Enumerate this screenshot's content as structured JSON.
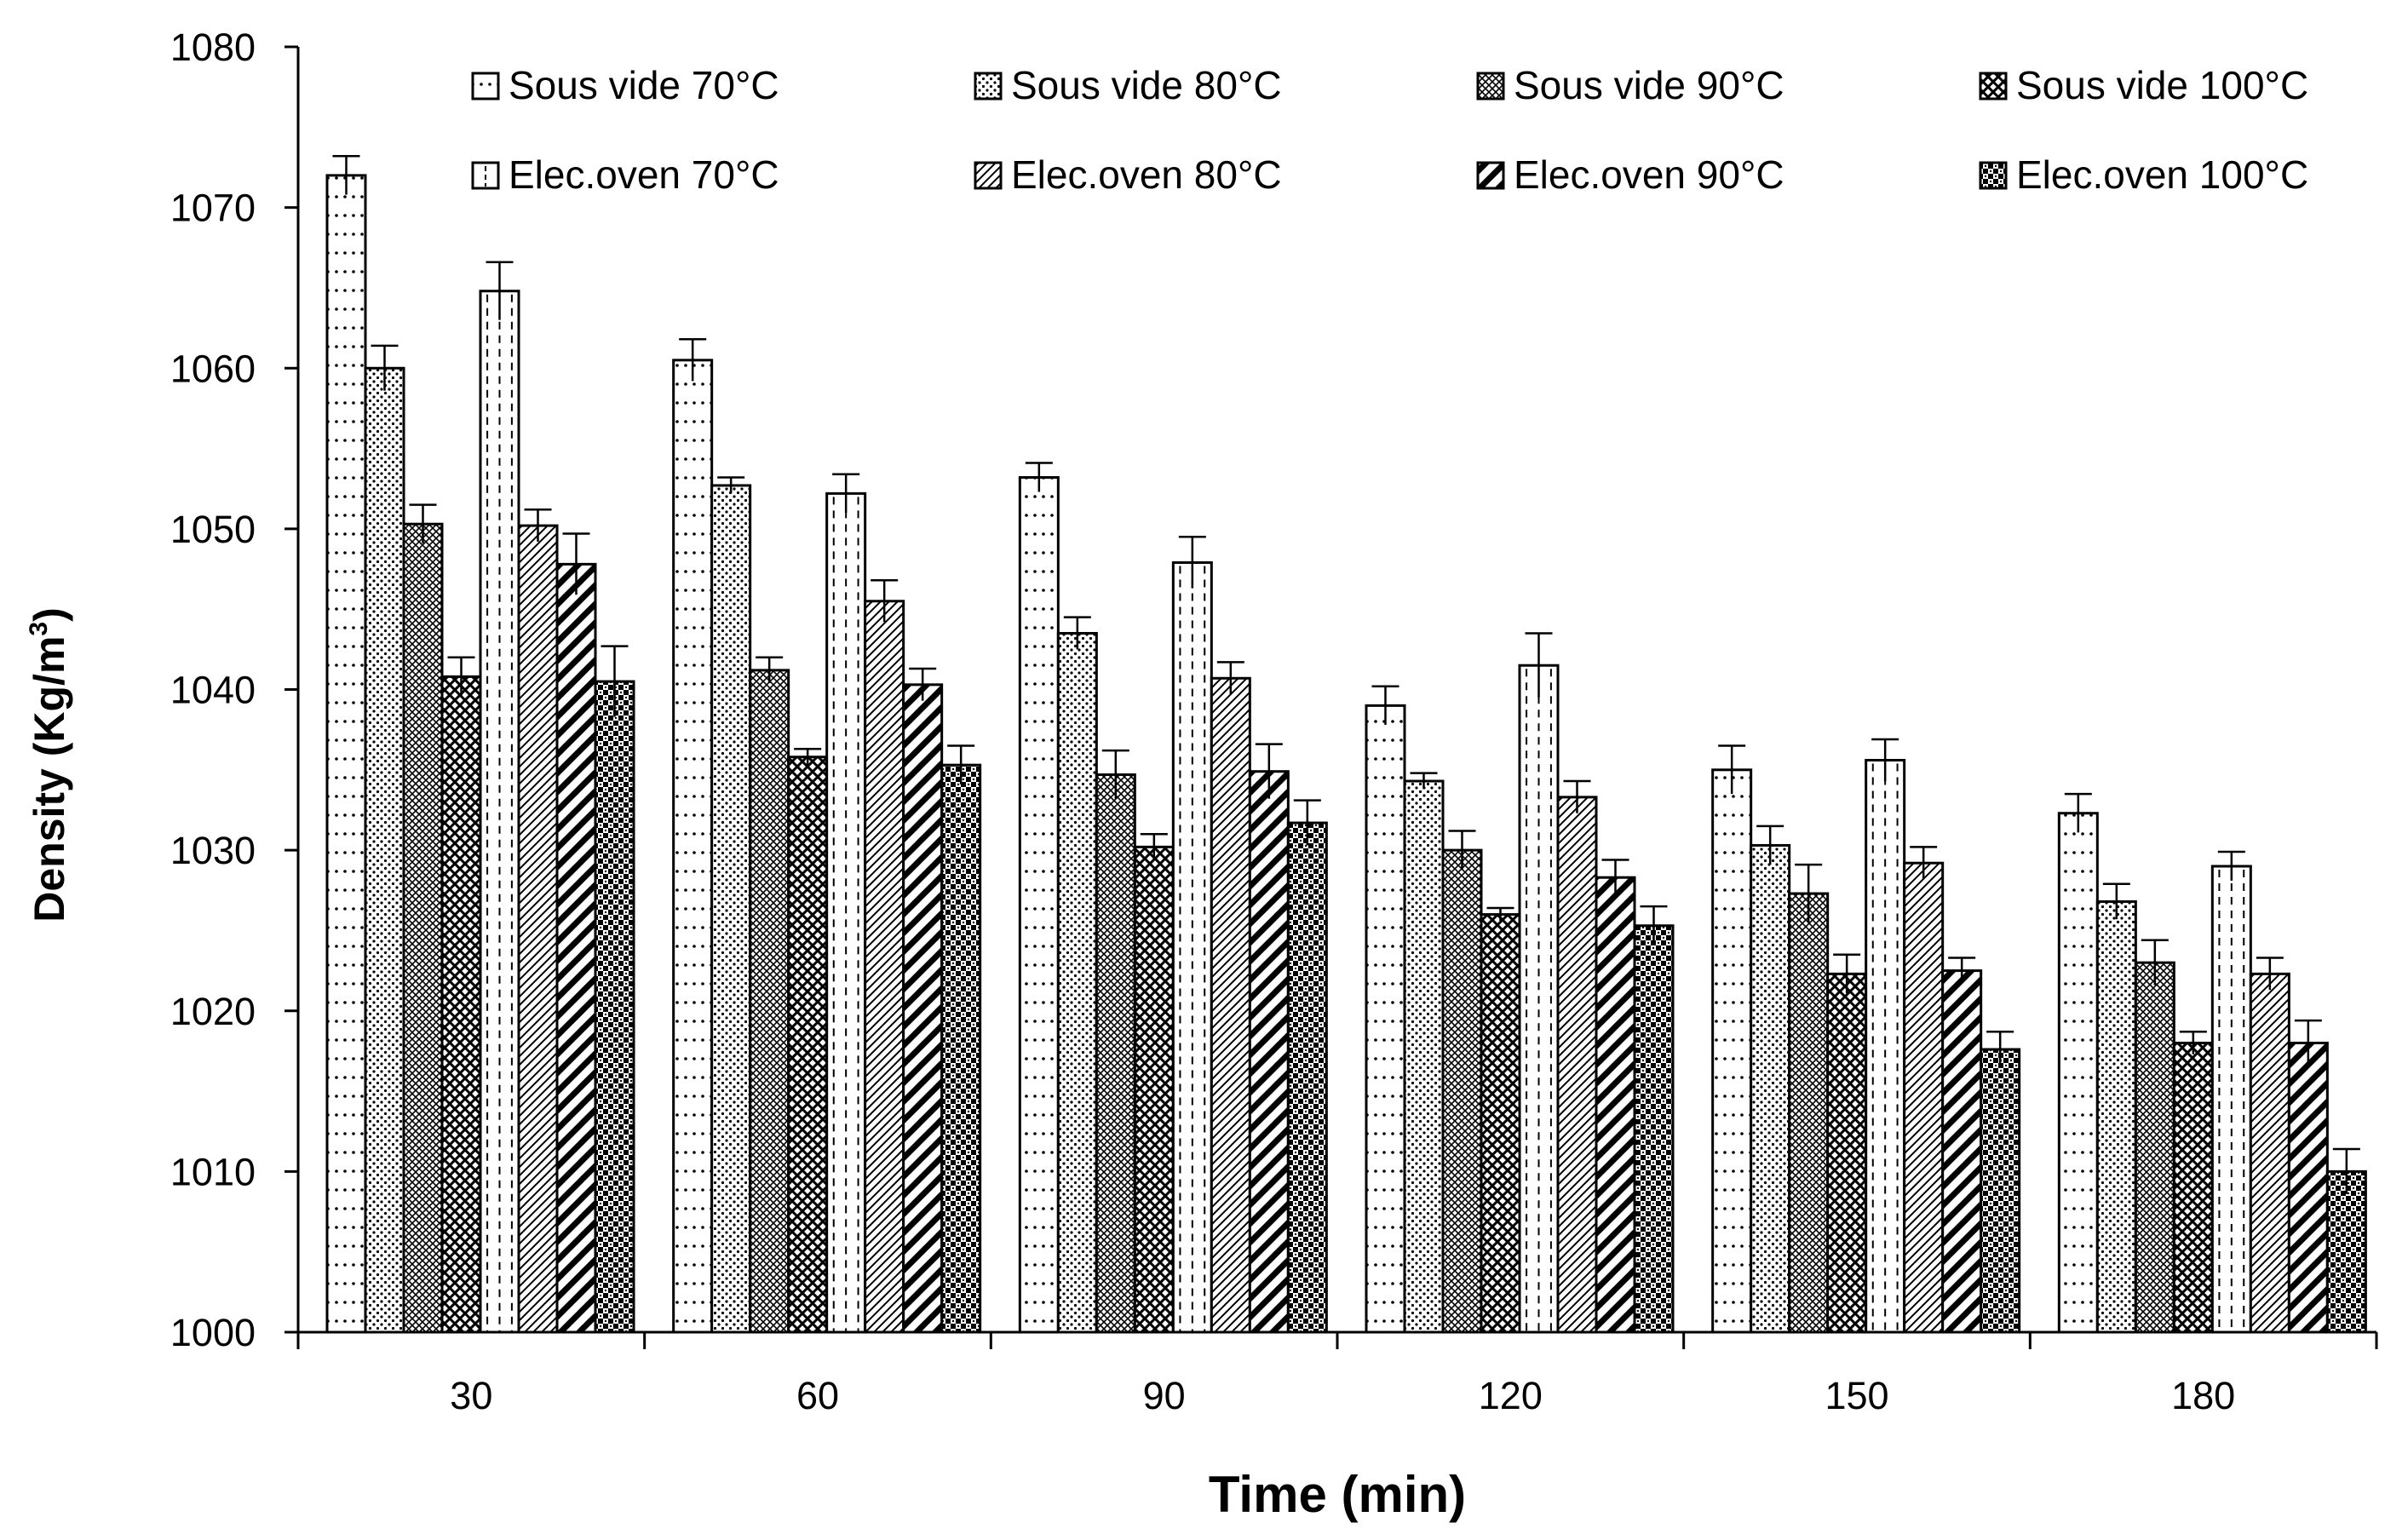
{
  "chart_data": {
    "type": "bar",
    "title": "",
    "xlabel": "Time (min)",
    "ylabel": "Density (Kg/m³)",
    "ylabel_parts": {
      "main": "Density (Kg/m",
      "sup": "3",
      "end": ")"
    },
    "ylim": [
      1000,
      1080
    ],
    "yticks": [
      1000,
      1010,
      1020,
      1030,
      1040,
      1050,
      1060,
      1070,
      1080
    ],
    "grid": false,
    "legend_position": "top",
    "categories": [
      "30",
      "60",
      "90",
      "120",
      "150",
      "180"
    ],
    "series": [
      {
        "name": "Sous vide 70°C",
        "pattern": "dots-sparse",
        "values": [
          1072,
          1060.5,
          1053.2,
          1039,
          1035,
          1032.3
        ],
        "errors": [
          1.2,
          1.3,
          0.9,
          1.2,
          1.5,
          1.2
        ]
      },
      {
        "name": "Sous vide 80°C",
        "pattern": "dots-dense",
        "values": [
          1060,
          1052.7,
          1043.5,
          1034.3,
          1030.3,
          1026.8
        ],
        "errors": [
          1.4,
          0.5,
          1.0,
          0.5,
          1.2,
          1.1
        ]
      },
      {
        "name": "Sous vide 90°C",
        "pattern": "cross-fine",
        "values": [
          1050.3,
          1041.2,
          1034.7,
          1030,
          1027.3,
          1023
        ],
        "errors": [
          1.2,
          0.8,
          1.5,
          1.2,
          1.8,
          1.4
        ]
      },
      {
        "name": "Sous vide 100°C",
        "pattern": "cross-bold",
        "values": [
          1040.8,
          1035.8,
          1030.2,
          1026,
          1022.3,
          1018
        ],
        "errors": [
          1.2,
          0.5,
          0.8,
          0.4,
          1.2,
          0.7
        ]
      },
      {
        "name": "Elec.oven 70°C",
        "pattern": "dashed-vertical",
        "values": [
          1064.8,
          1052.2,
          1047.9,
          1041.5,
          1035.6,
          1029
        ],
        "errors": [
          1.8,
          1.2,
          1.6,
          2.0,
          1.3,
          0.9
        ]
      },
      {
        "name": "Elec.oven 80°C",
        "pattern": "diagonal-thin",
        "values": [
          1050.2,
          1045.5,
          1040.7,
          1033.3,
          1029.2,
          1022.3
        ],
        "errors": [
          1.0,
          1.3,
          1.0,
          1.0,
          1.0,
          1.0
        ]
      },
      {
        "name": "Elec.oven 90°C",
        "pattern": "diagonal-bold",
        "values": [
          1047.8,
          1040.3,
          1034.9,
          1028.3,
          1022.5,
          1018
        ],
        "errors": [
          1.9,
          1.0,
          1.7,
          1.1,
          0.8,
          1.4
        ]
      },
      {
        "name": "Elec.oven 100°C",
        "pattern": "checker",
        "values": [
          1040.5,
          1035.3,
          1031.7,
          1025.3,
          1017.6,
          1010
        ],
        "errors": [
          2.2,
          1.2,
          1.4,
          1.2,
          1.1,
          1.4
        ]
      }
    ]
  }
}
